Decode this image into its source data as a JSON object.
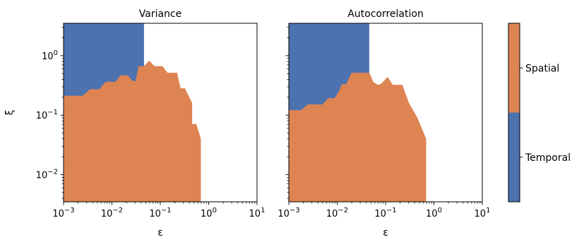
{
  "chart_data": [
    {
      "type": "area",
      "title": "Variance",
      "xlabel": "ε",
      "ylabel": "ξ",
      "xscale": "log",
      "yscale": "log",
      "xlim": [
        0.001,
        10
      ],
      "ylim": [
        0.0035,
        3.5
      ],
      "x_ticks": [
        {
          "value": 0.001,
          "base": "10",
          "exp": "−3"
        },
        {
          "value": 0.01,
          "base": "10",
          "exp": "−2"
        },
        {
          "value": 0.1,
          "base": "10",
          "exp": "−1"
        },
        {
          "value": 1,
          "base": "10",
          "exp": "0"
        },
        {
          "value": 10,
          "base": "10",
          "exp": "1"
        }
      ],
      "y_ticks": [
        {
          "value": 0.01,
          "base": "10",
          "exp": "−2"
        },
        {
          "value": 0.1,
          "base": "10",
          "exp": "−1"
        },
        {
          "value": 1,
          "base": "10",
          "exp": "0"
        }
      ],
      "series": [
        {
          "name": "Temporal",
          "color": "#4c72b0",
          "x": [
            0.001,
            0.046
          ],
          "y_top": 3.5
        },
        {
          "name": "Spatial",
          "color": "#dd8452",
          "boundary": [
            [
              0.001,
              0.21
            ],
            [
              0.0025,
              0.21
            ],
            [
              0.0035,
              0.27
            ],
            [
              0.0055,
              0.27
            ],
            [
              0.0075,
              0.36
            ],
            [
              0.012,
              0.36
            ],
            [
              0.015,
              0.46
            ],
            [
              0.021,
              0.46
            ],
            [
              0.027,
              0.37
            ],
            [
              0.031,
              0.37
            ],
            [
              0.036,
              0.66
            ],
            [
              0.046,
              0.66
            ],
            [
              0.059,
              0.81
            ],
            [
              0.075,
              0.66
            ],
            [
              0.11,
              0.66
            ],
            [
              0.14,
              0.51
            ],
            [
              0.22,
              0.51
            ],
            [
              0.26,
              0.28
            ],
            [
              0.32,
              0.28
            ],
            [
              0.45,
              0.16
            ],
            [
              0.45,
              0.07
            ],
            [
              0.55,
              0.07
            ],
            [
              0.68,
              0.04
            ],
            [
              0.68,
              0.0035
            ]
          ]
        }
      ]
    },
    {
      "type": "area",
      "title": "Autocorrelation",
      "xlabel": "ε",
      "ylabel": "",
      "xscale": "log",
      "yscale": "log",
      "xlim": [
        0.001,
        10
      ],
      "ylim": [
        0.0035,
        3.5
      ],
      "x_ticks": [
        {
          "value": 0.001,
          "base": "10",
          "exp": "−3"
        },
        {
          "value": 0.01,
          "base": "10",
          "exp": "−2"
        },
        {
          "value": 0.1,
          "base": "10",
          "exp": "−1"
        },
        {
          "value": 1,
          "base": "10",
          "exp": "0"
        },
        {
          "value": 10,
          "base": "10",
          "exp": "1"
        }
      ],
      "series": [
        {
          "name": "Temporal",
          "color": "#4c72b0",
          "x": [
            0.001,
            0.046
          ],
          "y_top": 3.5
        },
        {
          "name": "Spatial",
          "color": "#dd8452",
          "boundary": [
            [
              0.001,
              0.12
            ],
            [
              0.0018,
              0.12
            ],
            [
              0.0025,
              0.15
            ],
            [
              0.005,
              0.15
            ],
            [
              0.0065,
              0.19
            ],
            [
              0.0088,
              0.19
            ],
            [
              0.011,
              0.25
            ],
            [
              0.0125,
              0.33
            ],
            [
              0.0155,
              0.33
            ],
            [
              0.02,
              0.51
            ],
            [
              0.046,
              0.51
            ],
            [
              0.055,
              0.36
            ],
            [
              0.069,
              0.32
            ],
            [
              0.08,
              0.33
            ],
            [
              0.11,
              0.43
            ],
            [
              0.14,
              0.32
            ],
            [
              0.22,
              0.32
            ],
            [
              0.3,
              0.16
            ],
            [
              0.45,
              0.09
            ],
            [
              0.68,
              0.04
            ],
            [
              0.68,
              0.0035
            ]
          ]
        }
      ]
    }
  ],
  "colorbar": {
    "labels": [
      "Spatial",
      "Temporal"
    ],
    "colors": [
      "#dd8452",
      "#4c72b0"
    ]
  }
}
